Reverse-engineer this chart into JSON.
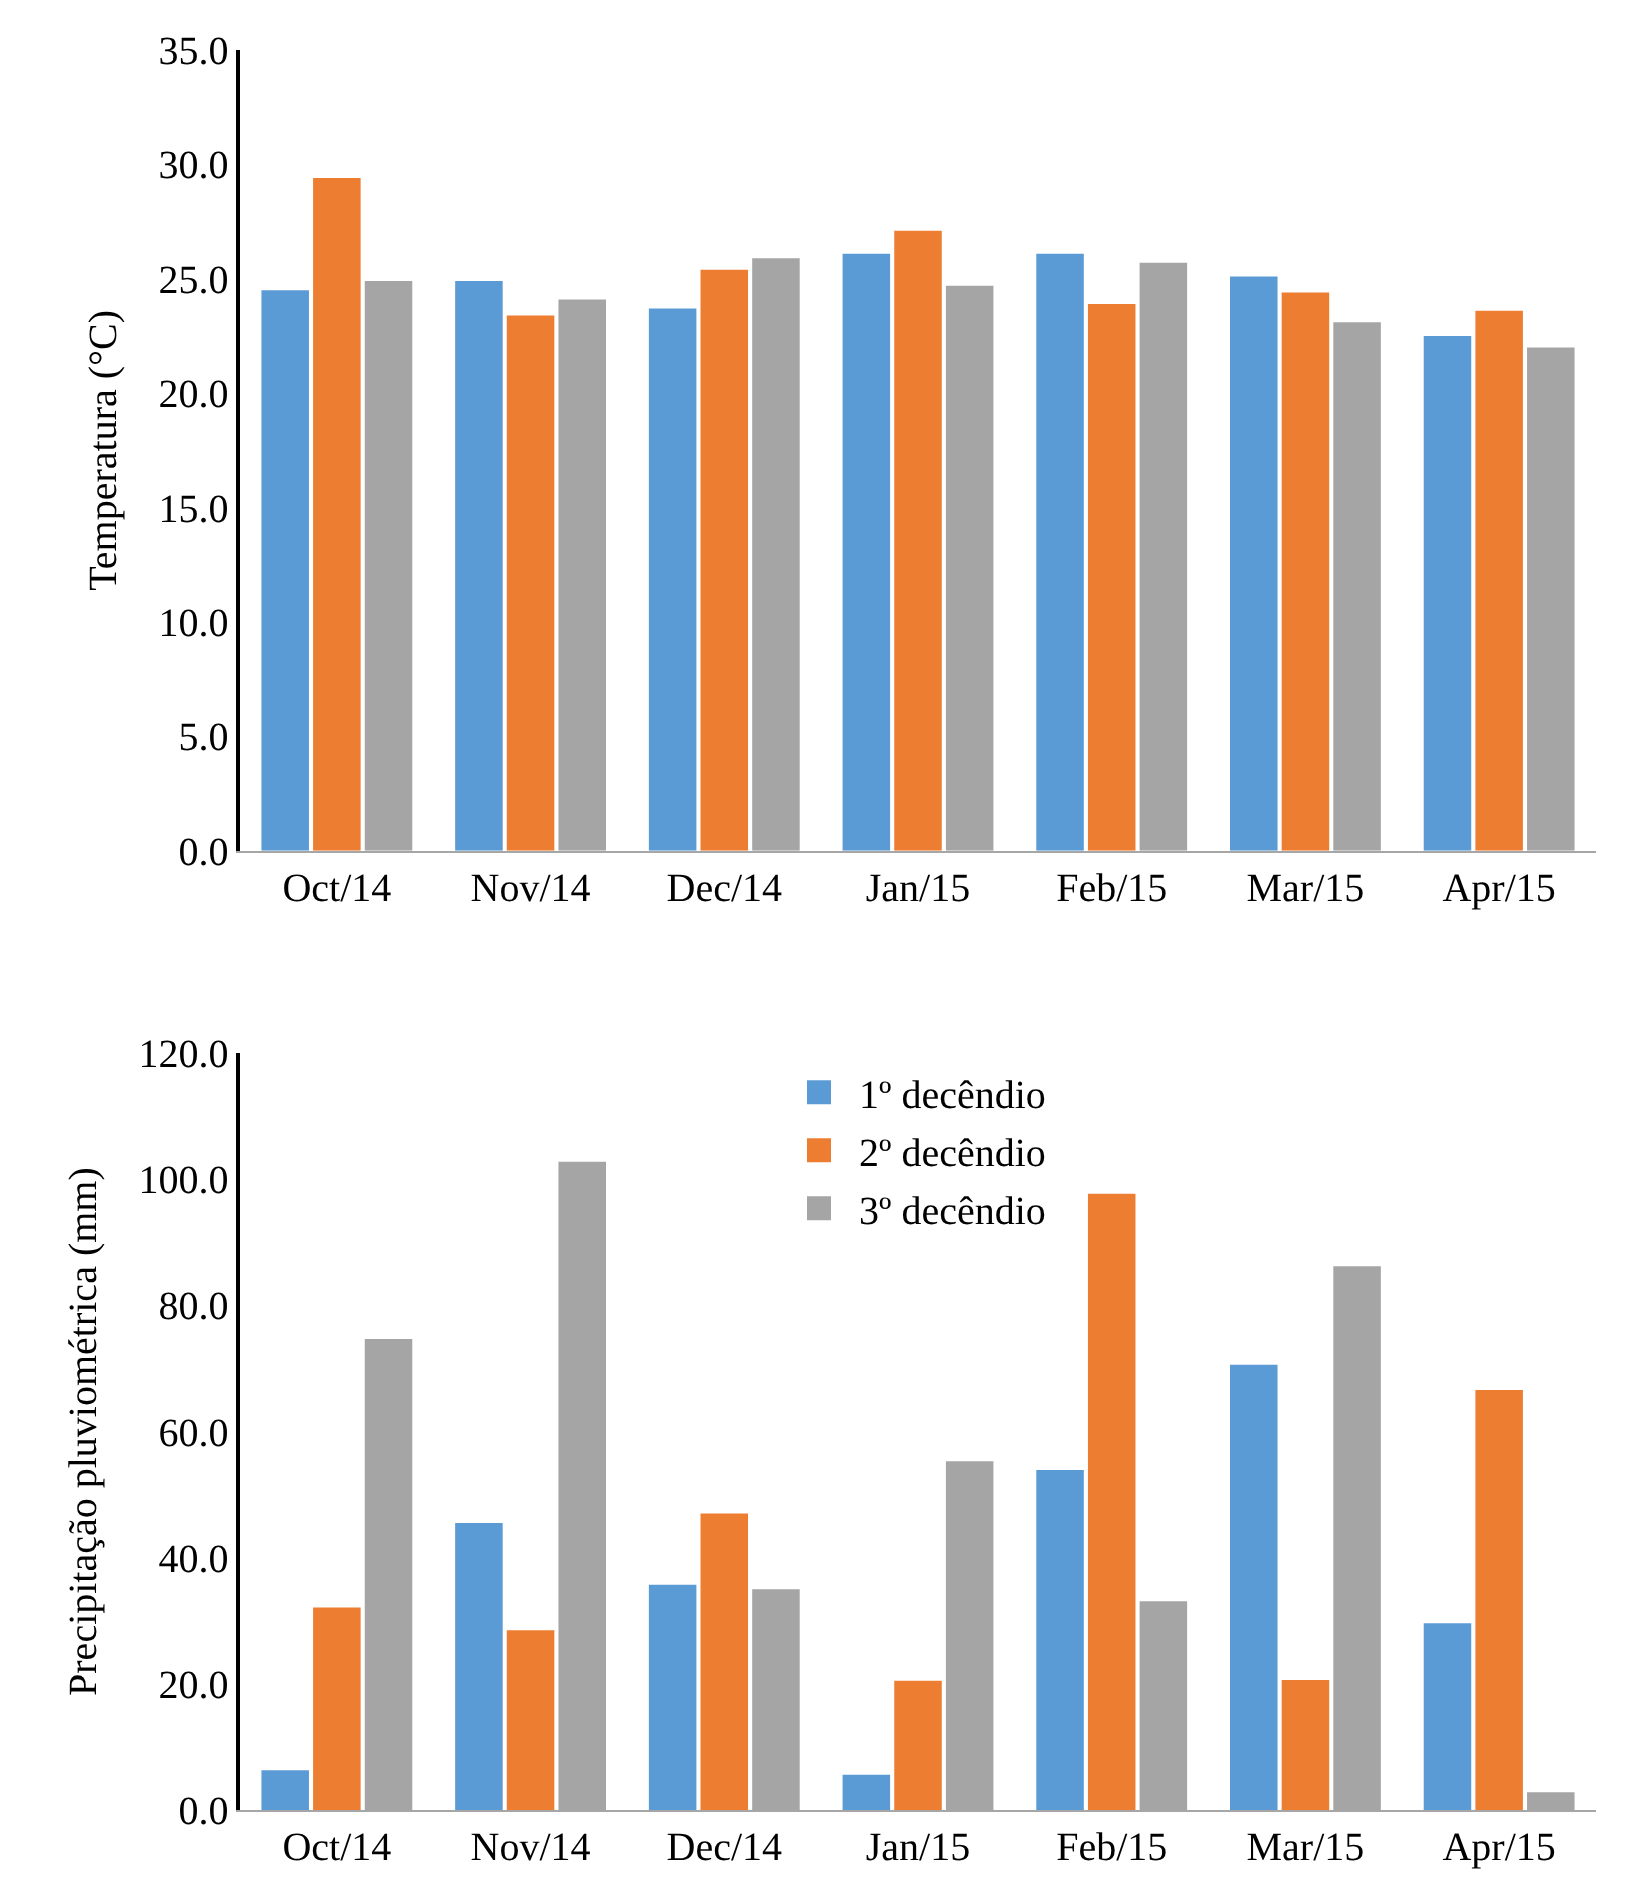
{
  "chart_data": [
    {
      "type": "bar",
      "ylabel": "Temperatura (°C)",
      "categories": [
        "Oct/14",
        "Nov/14",
        "Dec/14",
        "Jan/15",
        "Feb/15",
        "Mar/15",
        "Apr/15"
      ],
      "series": [
        {
          "color": "#5b9bd5",
          "values": [
            24.5,
            24.9,
            23.7,
            26.1,
            26.1,
            25.1,
            22.5
          ]
        },
        {
          "color": "#ed7d31",
          "values": [
            29.4,
            23.4,
            25.4,
            27.1,
            23.9,
            24.4,
            23.6
          ]
        },
        {
          "color": "#a5a5a5",
          "values": [
            24.9,
            24.1,
            25.9,
            24.7,
            25.7,
            23.1,
            22.0
          ]
        }
      ],
      "ylim": [
        0,
        35
      ],
      "yticks": [
        {
          "value": 0,
          "label": "0.0"
        },
        {
          "value": 5,
          "label": "5.0"
        },
        {
          "value": 10,
          "label": "10.0"
        },
        {
          "value": 15,
          "label": "15.0"
        },
        {
          "value": 20,
          "label": "20.0"
        },
        {
          "value": 25,
          "label": "25.0"
        },
        {
          "value": 30,
          "label": "30.0"
        },
        {
          "value": 35,
          "label": "35.0"
        }
      ]
    },
    {
      "type": "bar",
      "ylabel": "Precipitação pluviométrica (mm)",
      "categories": [
        "Oct/14",
        "Nov/14",
        "Dec/14",
        "Jan/15",
        "Feb/15",
        "Mar/15",
        "Apr/15"
      ],
      "series": [
        {
          "name": "1º decêndio",
          "color": "#5b9bd5",
          "values": [
            6.3,
            45.5,
            35.7,
            5.6,
            53.9,
            70.6,
            29.6
          ]
        },
        {
          "name": "2º decêndio",
          "color": "#ed7d31",
          "values": [
            32.1,
            28.5,
            47.0,
            20.5,
            97.7,
            20.6,
            66.6
          ]
        },
        {
          "name": "3º decêndio",
          "color": "#a5a5a5",
          "values": [
            74.7,
            102.8,
            35.0,
            55.3,
            33.1,
            86.2,
            2.8
          ]
        }
      ],
      "ylim": [
        0,
        120
      ],
      "yticks": [
        {
          "value": 0,
          "label": "0.0"
        },
        {
          "value": 20,
          "label": "20.0"
        },
        {
          "value": 40,
          "label": "40.0"
        },
        {
          "value": 60,
          "label": "60.0"
        },
        {
          "value": 80,
          "label": "80.0"
        },
        {
          "value": 100,
          "label": "100.0"
        },
        {
          "value": 120,
          "label": "120.0"
        }
      ],
      "legend": "top"
    }
  ]
}
